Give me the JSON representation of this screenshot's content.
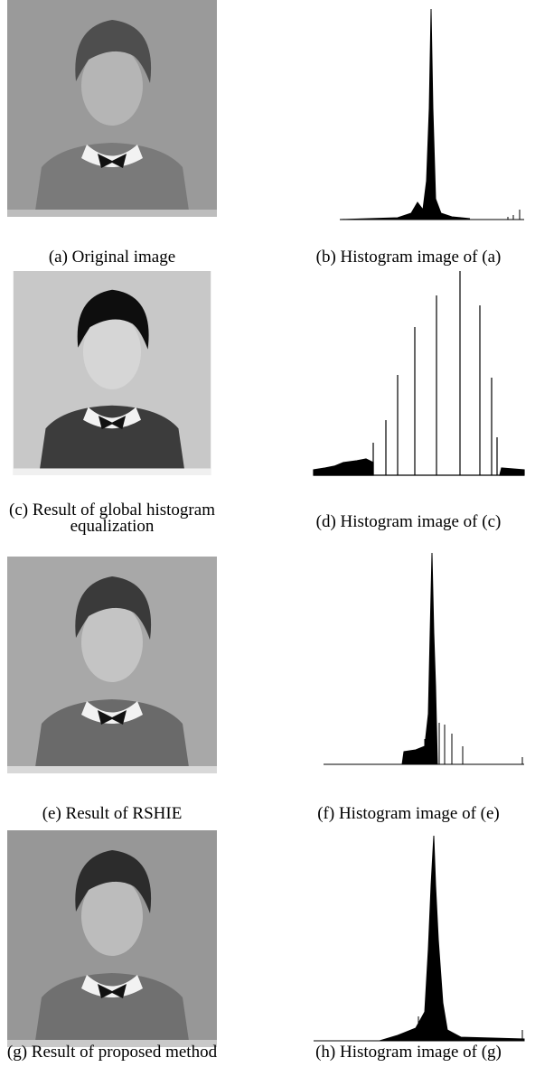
{
  "panels": [
    {
      "caption": "(a) Original image"
    },
    {
      "caption": "(b) Histogram image of (a)"
    },
    {
      "caption": "(c) Result of global histogram equalization"
    },
    {
      "caption": "(d) Histogram image of (c)"
    },
    {
      "caption": "(e) Result of RSHIE"
    },
    {
      "caption": "(f) Histogram image of (e)"
    },
    {
      "caption": "(g) Result of proposed method"
    },
    {
      "caption": "(h) Histogram image of (g)"
    }
  ]
}
